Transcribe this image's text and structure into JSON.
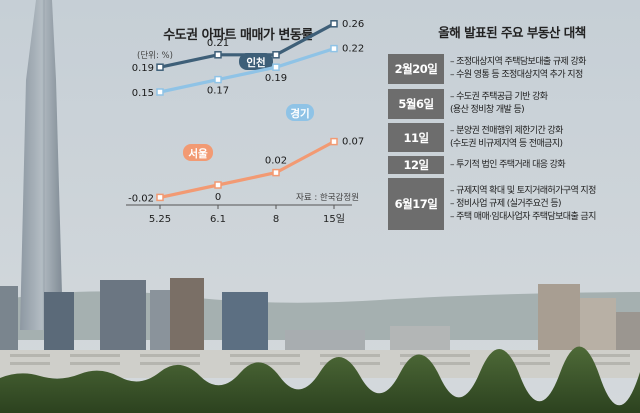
{
  "chart_data": {
    "type": "line",
    "title": "수도권 아파트 매매가 변동률",
    "unit_label": "(단위: %)",
    "source": "자료 : 한국감정원",
    "categories": [
      "5.25",
      "6.1",
      "8",
      "15일"
    ],
    "ylim": [
      -0.05,
      0.28
    ],
    "series": [
      {
        "name": "인천",
        "values": [
          0.19,
          0.21,
          0.21,
          0.26
        ],
        "labels": [
          "0.19",
          "0.21",
          "",
          "0.26"
        ],
        "color": "#3e5f78"
      },
      {
        "name": "경기",
        "values": [
          0.15,
          0.17,
          0.19,
          0.22
        ],
        "labels": [
          "0.15",
          "0.17",
          "0.19",
          "0.22"
        ],
        "color": "#8fc3e6"
      },
      {
        "name": "서울",
        "values": [
          -0.02,
          0,
          0.02,
          0.07
        ],
        "labels": [
          "-0.02",
          "0",
          "0.02",
          "0.07"
        ],
        "color": "#f29a73"
      }
    ]
  },
  "policy_panel": {
    "title": "올해 발표된 주요 부동산 대책",
    "rows": [
      {
        "date": "2월20일",
        "items": [
          "– 조정대상지역 주택담보대출 규제 강화",
          "– 수원 영통 등 조정대상지역 추가 지정"
        ]
      },
      {
        "date": "5월6일",
        "items": [
          "– 수도권 주택공급 기반 강화",
          "(용산 정비창 개발 등)"
        ]
      },
      {
        "date": "11일",
        "items": [
          "– 분양권 전매행위 제한기간 강화",
          "(수도권 비규제지역 등 전매금지)"
        ]
      },
      {
        "date": "12일",
        "items": [
          "– 투기적 법인 주택거래 대응 강화"
        ]
      },
      {
        "date": "6월17일",
        "items": [
          "– 규제지역 확대 및 토지거래허가구역 지정",
          "– 정비사업 규제 (실거주요건 등)",
          "– 주택 매매·임대사업자 주택담보대출 금지"
        ]
      }
    ]
  }
}
